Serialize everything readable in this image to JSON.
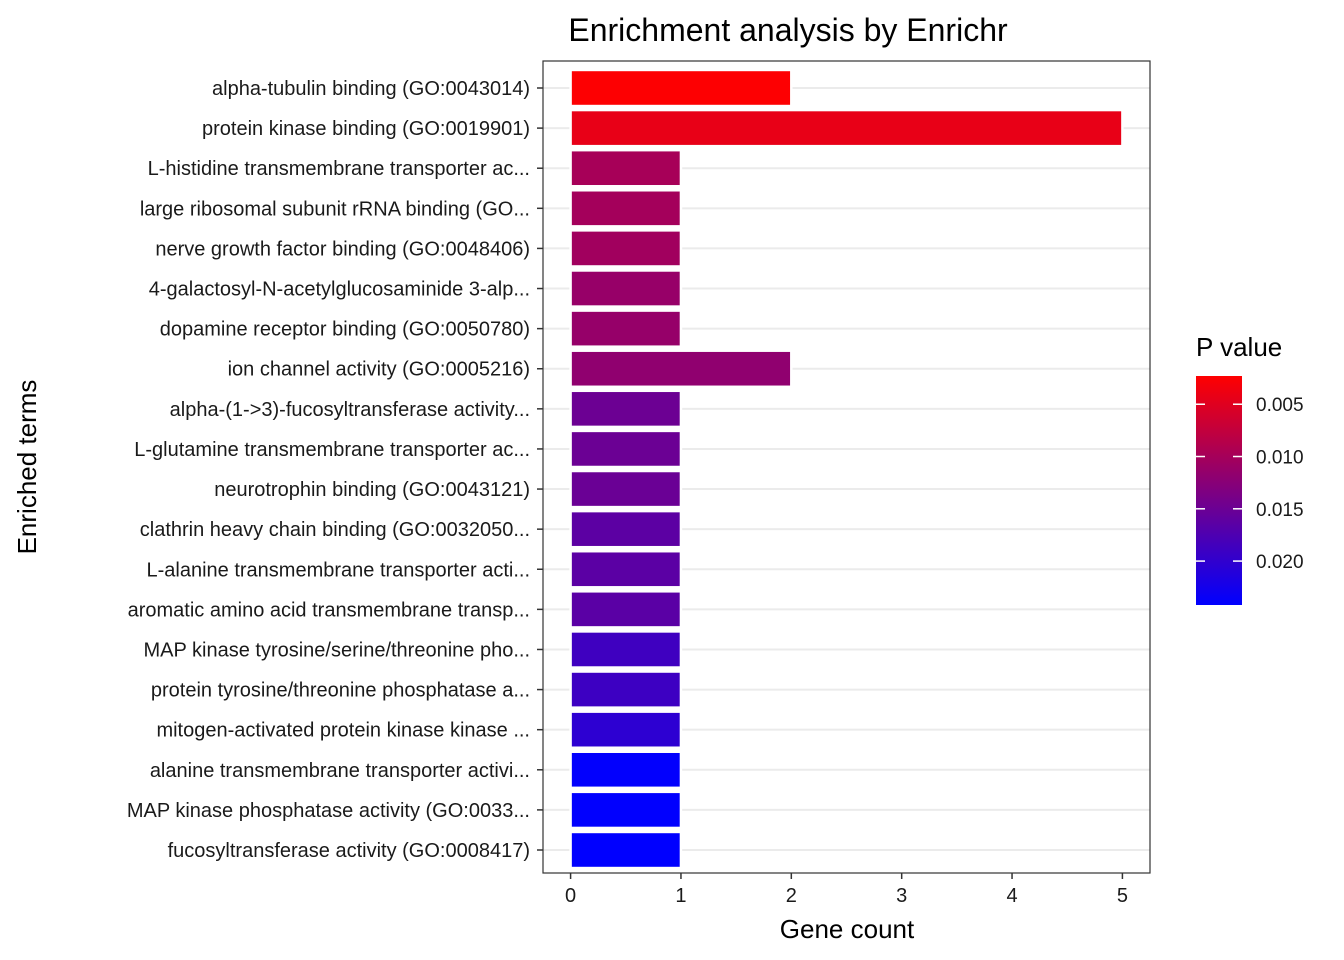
{
  "chart_data": {
    "type": "bar",
    "orientation": "horizontal",
    "title": "Enrichment analysis by Enrichr",
    "xlabel": "Gene count",
    "ylabel": "Enriched terms",
    "xlim": [
      -0.25,
      5.25
    ],
    "x_ticks": [
      0,
      1,
      2,
      3,
      4,
      5
    ],
    "grid": true,
    "categories": [
      "alpha-tubulin binding (GO:0043014)",
      "protein kinase binding (GO:0019901)",
      "L-histidine transmembrane transporter ac...",
      "large ribosomal subunit rRNA binding (GO...",
      "nerve growth factor binding (GO:0048406)",
      "4-galactosyl-N-acetylglucosaminide 3-alp...",
      "dopamine receptor binding (GO:0050780)",
      "ion channel activity (GO:0005216)",
      "alpha-(1->3)-fucosyltransferase activity...",
      "L-glutamine transmembrane transporter ac...",
      "neurotrophin binding (GO:0043121)",
      "clathrin heavy chain binding (GO:0032050...",
      "L-alanine transmembrane transporter acti...",
      "aromatic amino acid transmembrane transp...",
      "MAP kinase tyrosine/serine/threonine pho...",
      "protein tyrosine/threonine phosphatase a...",
      "mitogen-activated protein kinase kinase ...",
      "alanine transmembrane transporter activi...",
      "MAP kinase phosphatase activity (GO:0033...",
      "fucosyltransferase activity (GO:0008417)"
    ],
    "values": [
      2,
      5,
      1,
      1,
      1,
      1,
      1,
      2,
      1,
      1,
      1,
      1,
      1,
      1,
      1,
      1,
      1,
      1,
      1,
      1
    ],
    "p_values": [
      0.0025,
      0.0043,
      0.0099,
      0.0101,
      0.0104,
      0.0112,
      0.0113,
      0.0118,
      0.0149,
      0.015,
      0.0151,
      0.0163,
      0.0164,
      0.0165,
      0.0188,
      0.019,
      0.0203,
      0.024,
      0.0241,
      0.0242
    ],
    "legend": {
      "title": "P value",
      "position": "right",
      "ticks": [
        "0.005",
        "0.010",
        "0.015",
        "0.020"
      ],
      "tick_values": [
        0.005,
        0.01,
        0.015,
        0.02
      ],
      "range": [
        0.0023,
        0.0242
      ],
      "low_color": "#ff0000",
      "high_color": "#0000ff"
    },
    "colors": {
      "panel_border": "#333333",
      "grid_major": "#ebebeb",
      "grid_minor": "#f5f5f5",
      "bar_outline": "#ffffff"
    }
  }
}
